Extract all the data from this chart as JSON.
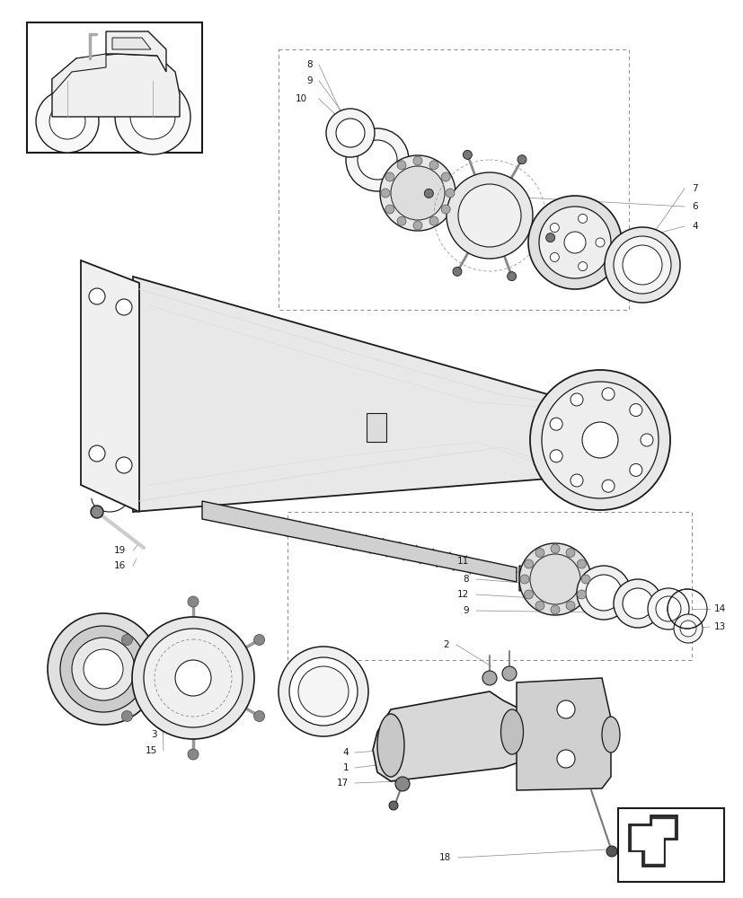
{
  "bg_color": "#ffffff",
  "line_color": "#1a1a1a",
  "gray_color": "#999999",
  "light_gray": "#dddddd",
  "mid_gray": "#bbbbbb",
  "figure_width": 8.28,
  "figure_height": 10.0,
  "dpi": 100
}
